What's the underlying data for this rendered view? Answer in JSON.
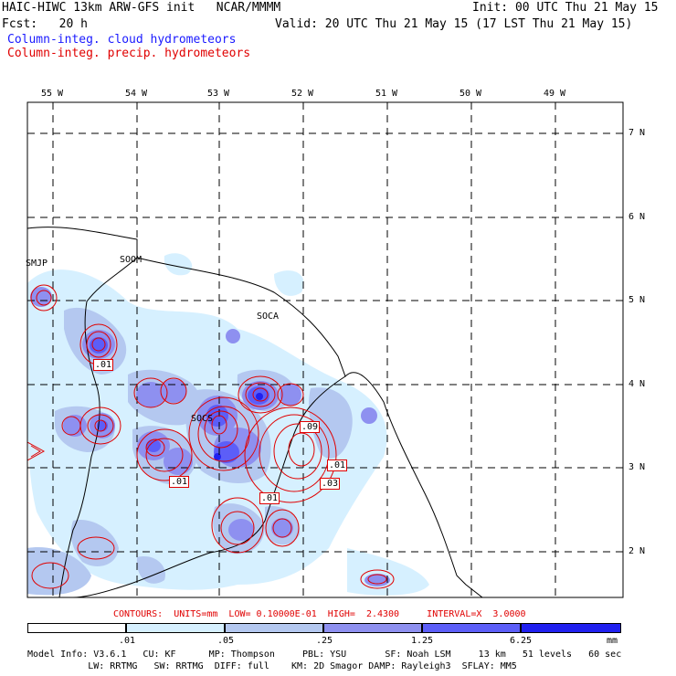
{
  "header": {
    "title": "HAIC-HIWC 13km ARW-GFS init   NCAR/MMMM",
    "init": "Init: 00 UTC Thu 21 May 15",
    "fcst": "Fcst:   20 h",
    "valid": "Valid: 20 UTC Thu 21 May 15 (17 LST Thu 21 May 15)",
    "field1": "Column-integ. cloud hydrometeors",
    "field2": "Column-integ. precip. hydrometeors"
  },
  "lon_labels": [
    "55 W",
    "54 W",
    "53 W",
    "52 W",
    "51 W",
    "50 W",
    "49 W"
  ],
  "lat_labels": [
    "7 N",
    "6 N",
    "5 N",
    "4 N",
    "3 N",
    "2 N"
  ],
  "stations": [
    "SMJP",
    "SOOM",
    "SOCA",
    "SOCS"
  ],
  "contour_labels": [
    ".01",
    ".09",
    ".01",
    ".03",
    ".01",
    ".01"
  ],
  "contour_info": "CONTOURS:  UNITS=mm  LOW= 0.10000E-01  HIGH=  2.4300     INTERVAL=X  3.0000",
  "colorbar": {
    "ticks": [
      ".01",
      ".05",
      ".25",
      "1.25",
      "6.25"
    ],
    "unit": "mm",
    "colors": [
      "#ffffff",
      "#d6f0ff",
      "#b4c8f0",
      "#8e90f0",
      "#5c5ef8",
      "#2020f0"
    ]
  },
  "footer": {
    "line1": "Model Info: V3.6.1   CU: KF      MP: Thompson     PBL: YSU       SF: Noah LSM     13 km   51 levels   60 sec",
    "line2": "           LW: RRTMG   SW: RRTMG  DIFF: full    KM: 2D Smagor DAMP: Rayleigh3  SFLAY: MM5"
  }
}
